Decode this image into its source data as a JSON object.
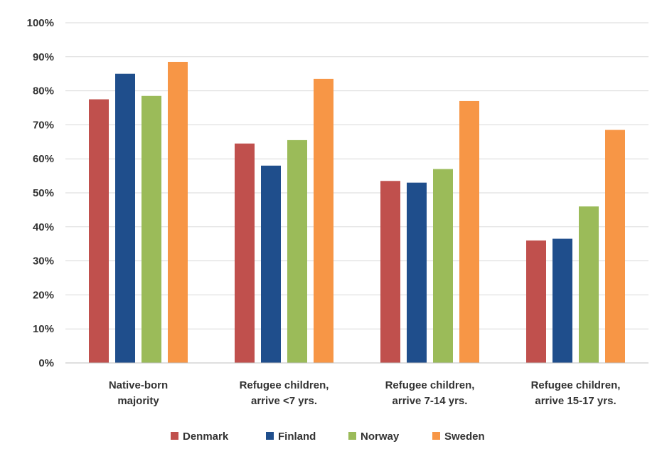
{
  "chart_data": {
    "type": "bar",
    "title": "",
    "xlabel": "",
    "ylabel": "",
    "ylim": [
      0,
      100
    ],
    "y_ticks": [
      "0%",
      "10%",
      "20%",
      "30%",
      "40%",
      "50%",
      "60%",
      "70%",
      "80%",
      "90%",
      "100%"
    ],
    "y_tick_values": [
      0,
      10,
      20,
      30,
      40,
      50,
      60,
      70,
      80,
      90,
      100
    ],
    "grid": true,
    "legend_position": "bottom",
    "categories": [
      [
        "Native-born",
        "majority"
      ],
      [
        "Refugee children,",
        "arrive <7 yrs."
      ],
      [
        "Refugee children,",
        "arrive 7-14 yrs."
      ],
      [
        "Refugee children,",
        "arrive 15-17 yrs."
      ]
    ],
    "series": [
      {
        "name": "Denmark",
        "color": "#c0504d",
        "values": [
          77.5,
          64.5,
          53.5,
          36.0
        ]
      },
      {
        "name": "Finland",
        "color": "#1f4e8c",
        "values": [
          85.0,
          58.0,
          53.0,
          36.5
        ]
      },
      {
        "name": "Norway",
        "color": "#9bbb59",
        "values": [
          78.5,
          65.5,
          57.0,
          46.0
        ]
      },
      {
        "name": "Sweden",
        "color": "#f79646",
        "values": [
          88.5,
          83.5,
          77.0,
          68.5
        ]
      }
    ]
  }
}
